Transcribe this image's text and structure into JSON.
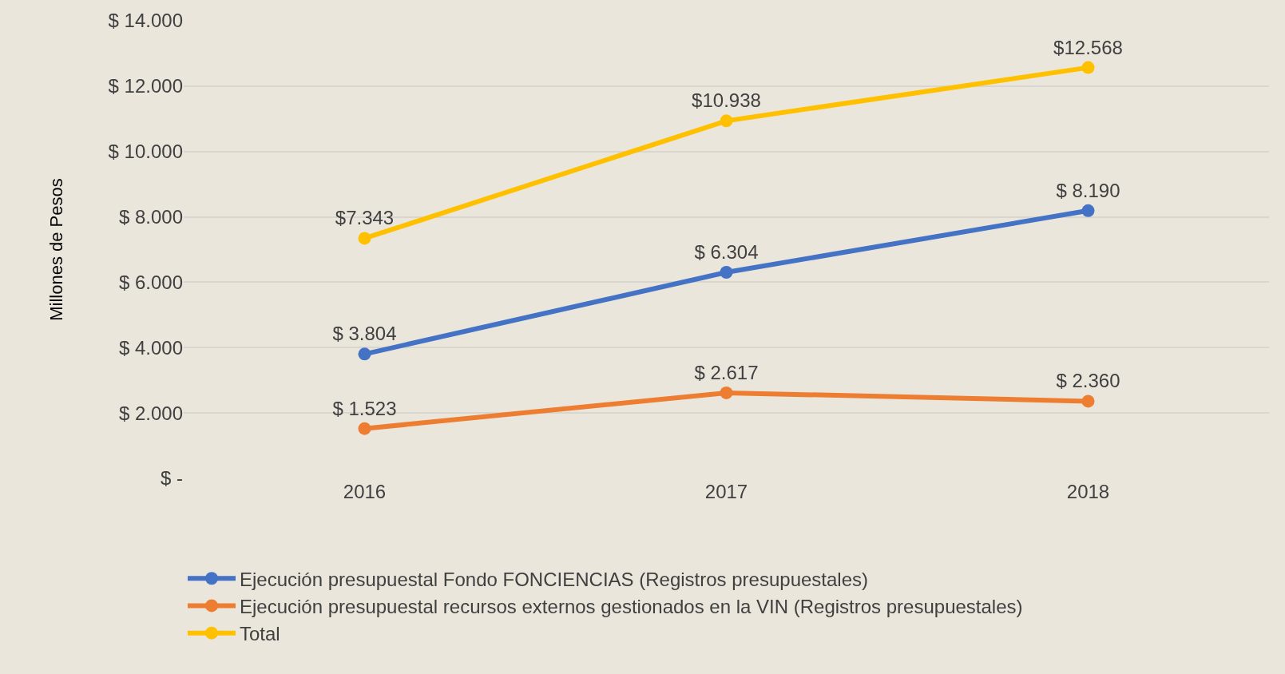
{
  "chart_data": {
    "type": "line",
    "ylabel": "Millones de Pesos",
    "categories": [
      "2016",
      "2017",
      "2018"
    ],
    "series": [
      {
        "name": "Ejecución presupuestal Fondo FONCIENCIAS (Registros presupuestales)",
        "color": "#4472c4",
        "values": [
          3804,
          6304,
          8190
        ],
        "value_labels": [
          "$ 3.804",
          "$ 6.304",
          "$ 8.190"
        ]
      },
      {
        "name": "Ejecución presupuestal recursos externos gestionados en la VIN (Registros presupuestales)",
        "color": "#ed7d31",
        "values": [
          1523,
          2617,
          2360
        ],
        "value_labels": [
          "$ 1.523",
          "$ 2.617",
          "$ 2.360"
        ]
      },
      {
        "name": "Total",
        "color": "#ffc000",
        "values": [
          7343,
          10938,
          12568
        ],
        "value_labels": [
          "$7.343",
          "$10.938",
          "$12.568"
        ]
      }
    ],
    "ylim": [
      0,
      14000
    ],
    "yticks": [
      {
        "value": 0,
        "label": "$ -"
      },
      {
        "value": 2000,
        "label": "$ 2.000"
      },
      {
        "value": 4000,
        "label": "$ 4.000"
      },
      {
        "value": 6000,
        "label": "$ 6.000"
      },
      {
        "value": 8000,
        "label": "$ 8.000"
      },
      {
        "value": 10000,
        "label": "$ 10.000"
      },
      {
        "value": 12000,
        "label": "$ 12.000"
      },
      {
        "value": 14000,
        "label": "$ 14.000"
      }
    ],
    "grid": "y",
    "legend": "bottom",
    "marker": "circle",
    "line_style": "solid"
  }
}
